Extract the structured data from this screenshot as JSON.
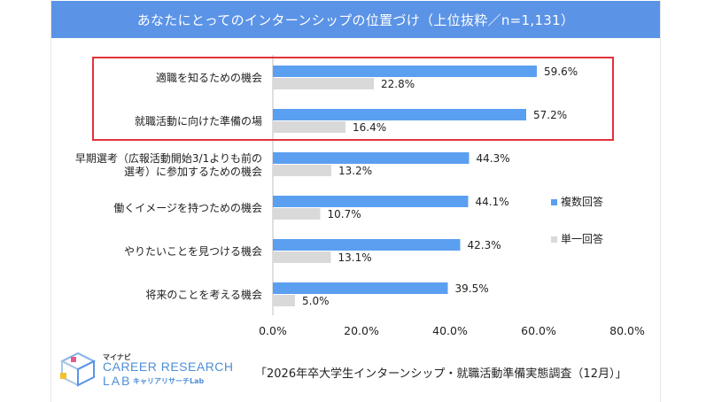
{
  "title": "あなたにとってのインターンシップの位置づけ（上位抜粋／n=1,131）",
  "source_note": "「2026年卒大学生インターンシップ・就職活動準備実態調査（12月）」",
  "logo": {
    "brand_small": "マイナビ",
    "line1": "CAREER RESEARCH",
    "line2": "LAB",
    "kana": "キャリアリサーチLab"
  },
  "colors": {
    "title_bar": "#5b93e6",
    "series_multi": "#5b9ff0",
    "series_single": "#d9d9d9",
    "highlight": "#e0323c"
  },
  "chart_data": {
    "type": "bar",
    "orientation": "horizontal",
    "categories": [
      [
        "適職を知るための機会"
      ],
      [
        "就職活動に向けた準備の場"
      ],
      [
        "早期選考（広報活動開始3/1よりも前の",
        "選考）に参加するための機会"
      ],
      [
        "働くイメージを持つための機会"
      ],
      [
        "やりたいことを見つける機会"
      ],
      [
        "将来のことを考える機会"
      ]
    ],
    "series": [
      {
        "name": "複数回答",
        "values": [
          59.6,
          57.2,
          44.3,
          44.1,
          42.3,
          39.5
        ],
        "labels": [
          "59.6%",
          "57.2%",
          "44.3%",
          "44.1%",
          "42.3%",
          "39.5%"
        ]
      },
      {
        "name": "単一回答",
        "values": [
          22.8,
          16.4,
          13.2,
          10.7,
          13.1,
          5.0
        ],
        "labels": [
          "22.8%",
          "16.4%",
          "13.2%",
          "10.7%",
          "13.1%",
          "5.0%"
        ]
      }
    ],
    "xlim": [
      0,
      80
    ],
    "ticks": [
      0,
      20,
      40,
      60,
      80
    ],
    "tick_labels": [
      "0.0%",
      "20.0%",
      "40.0%",
      "60.0%",
      "80.0%"
    ],
    "grid": false,
    "legend_position": "right",
    "highlighted_categories": [
      0,
      1
    ]
  }
}
